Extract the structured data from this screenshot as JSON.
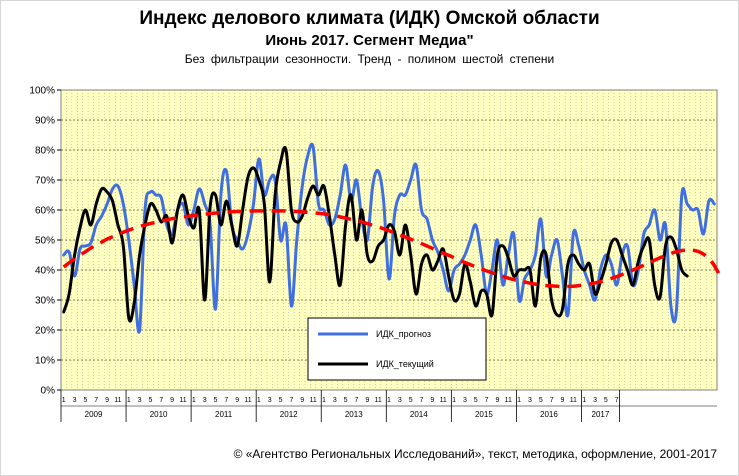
{
  "chart_data": {
    "type": "line",
    "title": "Индекс делового климата (ИДК) Омской области",
    "subtitle": "Июнь 2017. Сегмент Медиа\"",
    "note": "Без фильтрации сезонности. Тренд - полином шестой степени",
    "ylim": [
      0,
      100
    ],
    "y_ticks": [
      "0%",
      "10%",
      "20%",
      "30%",
      "40%",
      "50%",
      "60%",
      "70%",
      "80%",
      "90%",
      "100%"
    ],
    "years": [
      {
        "label": "2009",
        "months": [
          "1",
          "3",
          "5",
          "7",
          "9",
          "11"
        ]
      },
      {
        "label": "2010",
        "months": [
          "1",
          "3",
          "5",
          "7",
          "9",
          "11"
        ]
      },
      {
        "label": "2011",
        "months": [
          "1",
          "3",
          "5",
          "7",
          "9",
          "11"
        ]
      },
      {
        "label": "2012",
        "months": [
          "1",
          "3",
          "5",
          "7",
          "9",
          "11"
        ]
      },
      {
        "label": "2013",
        "months": [
          "1",
          "3",
          "5",
          "7",
          "9",
          "11"
        ]
      },
      {
        "label": "2014",
        "months": [
          "1",
          "3",
          "5",
          "7",
          "9",
          "11"
        ]
      },
      {
        "label": "2015",
        "months": [
          "1",
          "3",
          "5",
          "7",
          "9",
          "11"
        ]
      },
      {
        "label": "2016",
        "months": [
          "1",
          "3",
          "5",
          "7",
          "9",
          "11"
        ]
      },
      {
        "label": "2017",
        "months": [
          "1",
          "3",
          "5",
          "7"
        ]
      }
    ],
    "grid": true,
    "legend_position": "bottom-center",
    "series": [
      {
        "name": "ИДК_прогноз",
        "color": "#3f6fe0",
        "values": [
          45,
          46,
          38,
          47,
          48,
          49,
          55,
          58,
          62,
          67,
          68,
          62,
          50,
          35,
          20,
          60,
          66,
          65,
          64,
          55,
          52,
          60,
          62,
          55,
          60,
          67,
          62,
          55,
          27,
          65,
          73,
          55,
          50,
          47,
          52,
          62,
          77,
          65,
          70,
          70,
          50,
          55,
          28,
          50,
          68,
          78,
          81,
          62,
          60,
          55,
          57,
          65,
          75,
          63,
          70,
          57,
          50,
          68,
          73,
          63,
          37,
          58,
          65,
          65,
          70,
          75,
          60,
          57,
          50,
          46,
          40,
          33,
          40,
          42,
          45,
          50,
          55,
          45,
          32,
          40,
          50,
          35,
          45,
          52,
          30,
          37,
          40,
          45,
          57,
          38,
          45,
          50,
          38,
          25,
          52,
          48,
          40,
          35,
          30,
          40,
          45,
          42,
          35,
          45,
          48,
          35,
          40,
          52,
          55,
          60,
          50,
          55,
          28,
          26,
          65,
          62,
          60,
          60,
          52,
          63,
          62
        ]
      },
      {
        "name": "ИДК_текущий",
        "color": "#000000",
        "values": [
          26,
          32,
          45,
          54,
          60,
          55,
          62,
          67,
          66,
          63,
          55,
          48,
          24,
          29,
          45,
          55,
          62,
          60,
          56,
          58,
          49,
          60,
          65,
          58,
          54,
          60,
          30,
          61,
          65,
          55,
          63,
          55,
          48,
          60,
          71,
          74,
          70,
          62,
          36,
          65,
          76,
          80,
          60,
          56,
          58,
          64,
          68,
          65,
          68,
          58,
          45,
          35,
          55,
          65,
          50,
          60,
          45,
          43,
          48,
          50,
          55,
          53,
          45,
          55,
          45,
          32,
          42,
          45,
          40,
          43,
          47,
          38,
          30,
          32,
          42,
          36,
          28,
          33,
          32,
          25,
          45,
          48,
          44,
          38,
          40,
          40,
          40,
          28,
          44,
          45,
          30,
          25,
          27,
          42,
          45,
          42,
          40,
          42,
          32,
          36,
          42,
          49,
          50,
          45,
          40,
          35,
          43,
          48,
          50,
          35,
          31,
          48,
          51,
          47,
          40,
          38
        ]
      },
      {
        "name": "",
        "color": "#ff0000",
        "dashed": true,
        "values": [
          41,
          42.4,
          43.7,
          45,
          46.1,
          47.3,
          48.4,
          49.3,
          50.3,
          51.1,
          51.9,
          52.6,
          53.3,
          53.9,
          54.5,
          55,
          55.5,
          55.9,
          56.4,
          56.7,
          57.1,
          57.4,
          57.7,
          57.9,
          58.2,
          58.4,
          58.6,
          58.8,
          59,
          59.1,
          59.2,
          59.4,
          59.5,
          59.6,
          59.6,
          59.7,
          59.7,
          59.7,
          59.7,
          59.7,
          59.7,
          59.7,
          59.6,
          59.5,
          59.4,
          59.2,
          59.1,
          58.9,
          58.7,
          58.4,
          58.1,
          57.7,
          57.3,
          56.9,
          56.5,
          56,
          55.5,
          54.9,
          54.4,
          53.7,
          53.1,
          52.4,
          51.7,
          51,
          50.3,
          49.5,
          48.8,
          48,
          47.2,
          46.4,
          45.6,
          44.9,
          44.1,
          43.3,
          42.5,
          41.8,
          41.1,
          40.4,
          39.7,
          39.1,
          38.5,
          37.9,
          37.3,
          36.8,
          36.4,
          36,
          35.6,
          35.3,
          35,
          34.8,
          34.7,
          34.6,
          34.5,
          34.5,
          34.6,
          34.8,
          35,
          35.3,
          35.7,
          36.1,
          36.6,
          37.2,
          37.8,
          38.5,
          39.2,
          40,
          40.8,
          41.6,
          42.4,
          43.3,
          44.1,
          44.8,
          45.5,
          46.1,
          46.5,
          46.7,
          46.6,
          46.2,
          45.3,
          43.8,
          41.5,
          38.2
        ]
      }
    ]
  },
  "footer": "© «Агентство Региональных Исследований», текст, методика, оформление, 2001-2017"
}
